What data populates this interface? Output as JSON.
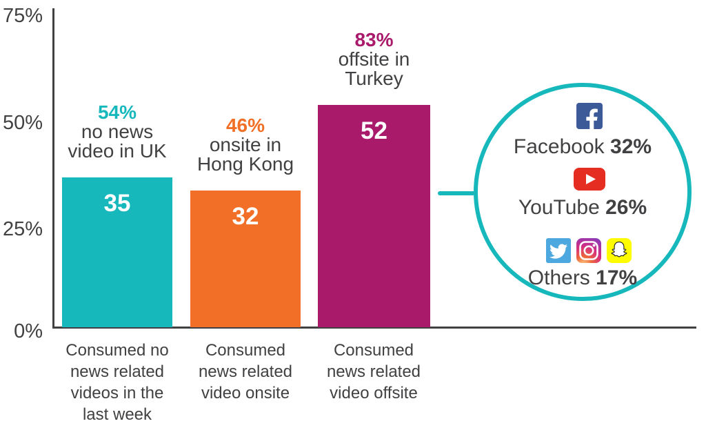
{
  "palette": {
    "teal": "#17b8bc",
    "orange": "#f26f27",
    "magenta": "#a91a6b",
    "text": "#414042",
    "facebook": "#3d5a98",
    "youtube": "#e62d22",
    "twitter": "#4da8df",
    "snapchat": "#fffc00",
    "instagram_gradient": [
      "#ffdb8b",
      "#ee653b",
      "#d42e81",
      "#8a3ab9"
    ]
  },
  "chart_data": {
    "type": "bar",
    "title": "",
    "categories": [
      "Consumed no news related videos in the last week",
      "Consumed news related video onsite",
      "Consumed news related video offsite"
    ],
    "values": [
      35,
      32,
      52
    ],
    "bar_colors": [
      "#17b8bc",
      "#f26f27",
      "#a91a6b"
    ],
    "ylim": [
      0,
      75
    ],
    "yticks": [
      "75%",
      "50%",
      "25%",
      "0%"
    ],
    "grid": "off",
    "annotations": [
      {
        "pct": "54%",
        "line1": "no news",
        "line2": "video in UK",
        "color": "#17b8bc"
      },
      {
        "pct": "46%",
        "line1": "onsite in",
        "line2": "Hong Kong",
        "color": "#f26f27"
      },
      {
        "pct": "83%",
        "line1": "offsite in",
        "line2": "Turkey",
        "color": "#a91a6b"
      }
    ],
    "x_tick_lines": [
      [
        "Consumed no",
        "news related",
        "videos in the",
        "last week"
      ],
      [
        "Consumed",
        "news related",
        "video onsite"
      ],
      [
        "Consumed",
        "news related",
        "video offsite"
      ]
    ],
    "callout": {
      "shape": "circle",
      "items": [
        {
          "icon": "facebook-icon",
          "platform": "Facebook",
          "value": "32%"
        },
        {
          "icon": "youtube-icon",
          "platform": "YouTube",
          "value": "26%"
        },
        {
          "icon": "twitter-icon, instagram-icon, snapchat-icon",
          "platform": "Others",
          "value": "17%"
        }
      ]
    }
  }
}
